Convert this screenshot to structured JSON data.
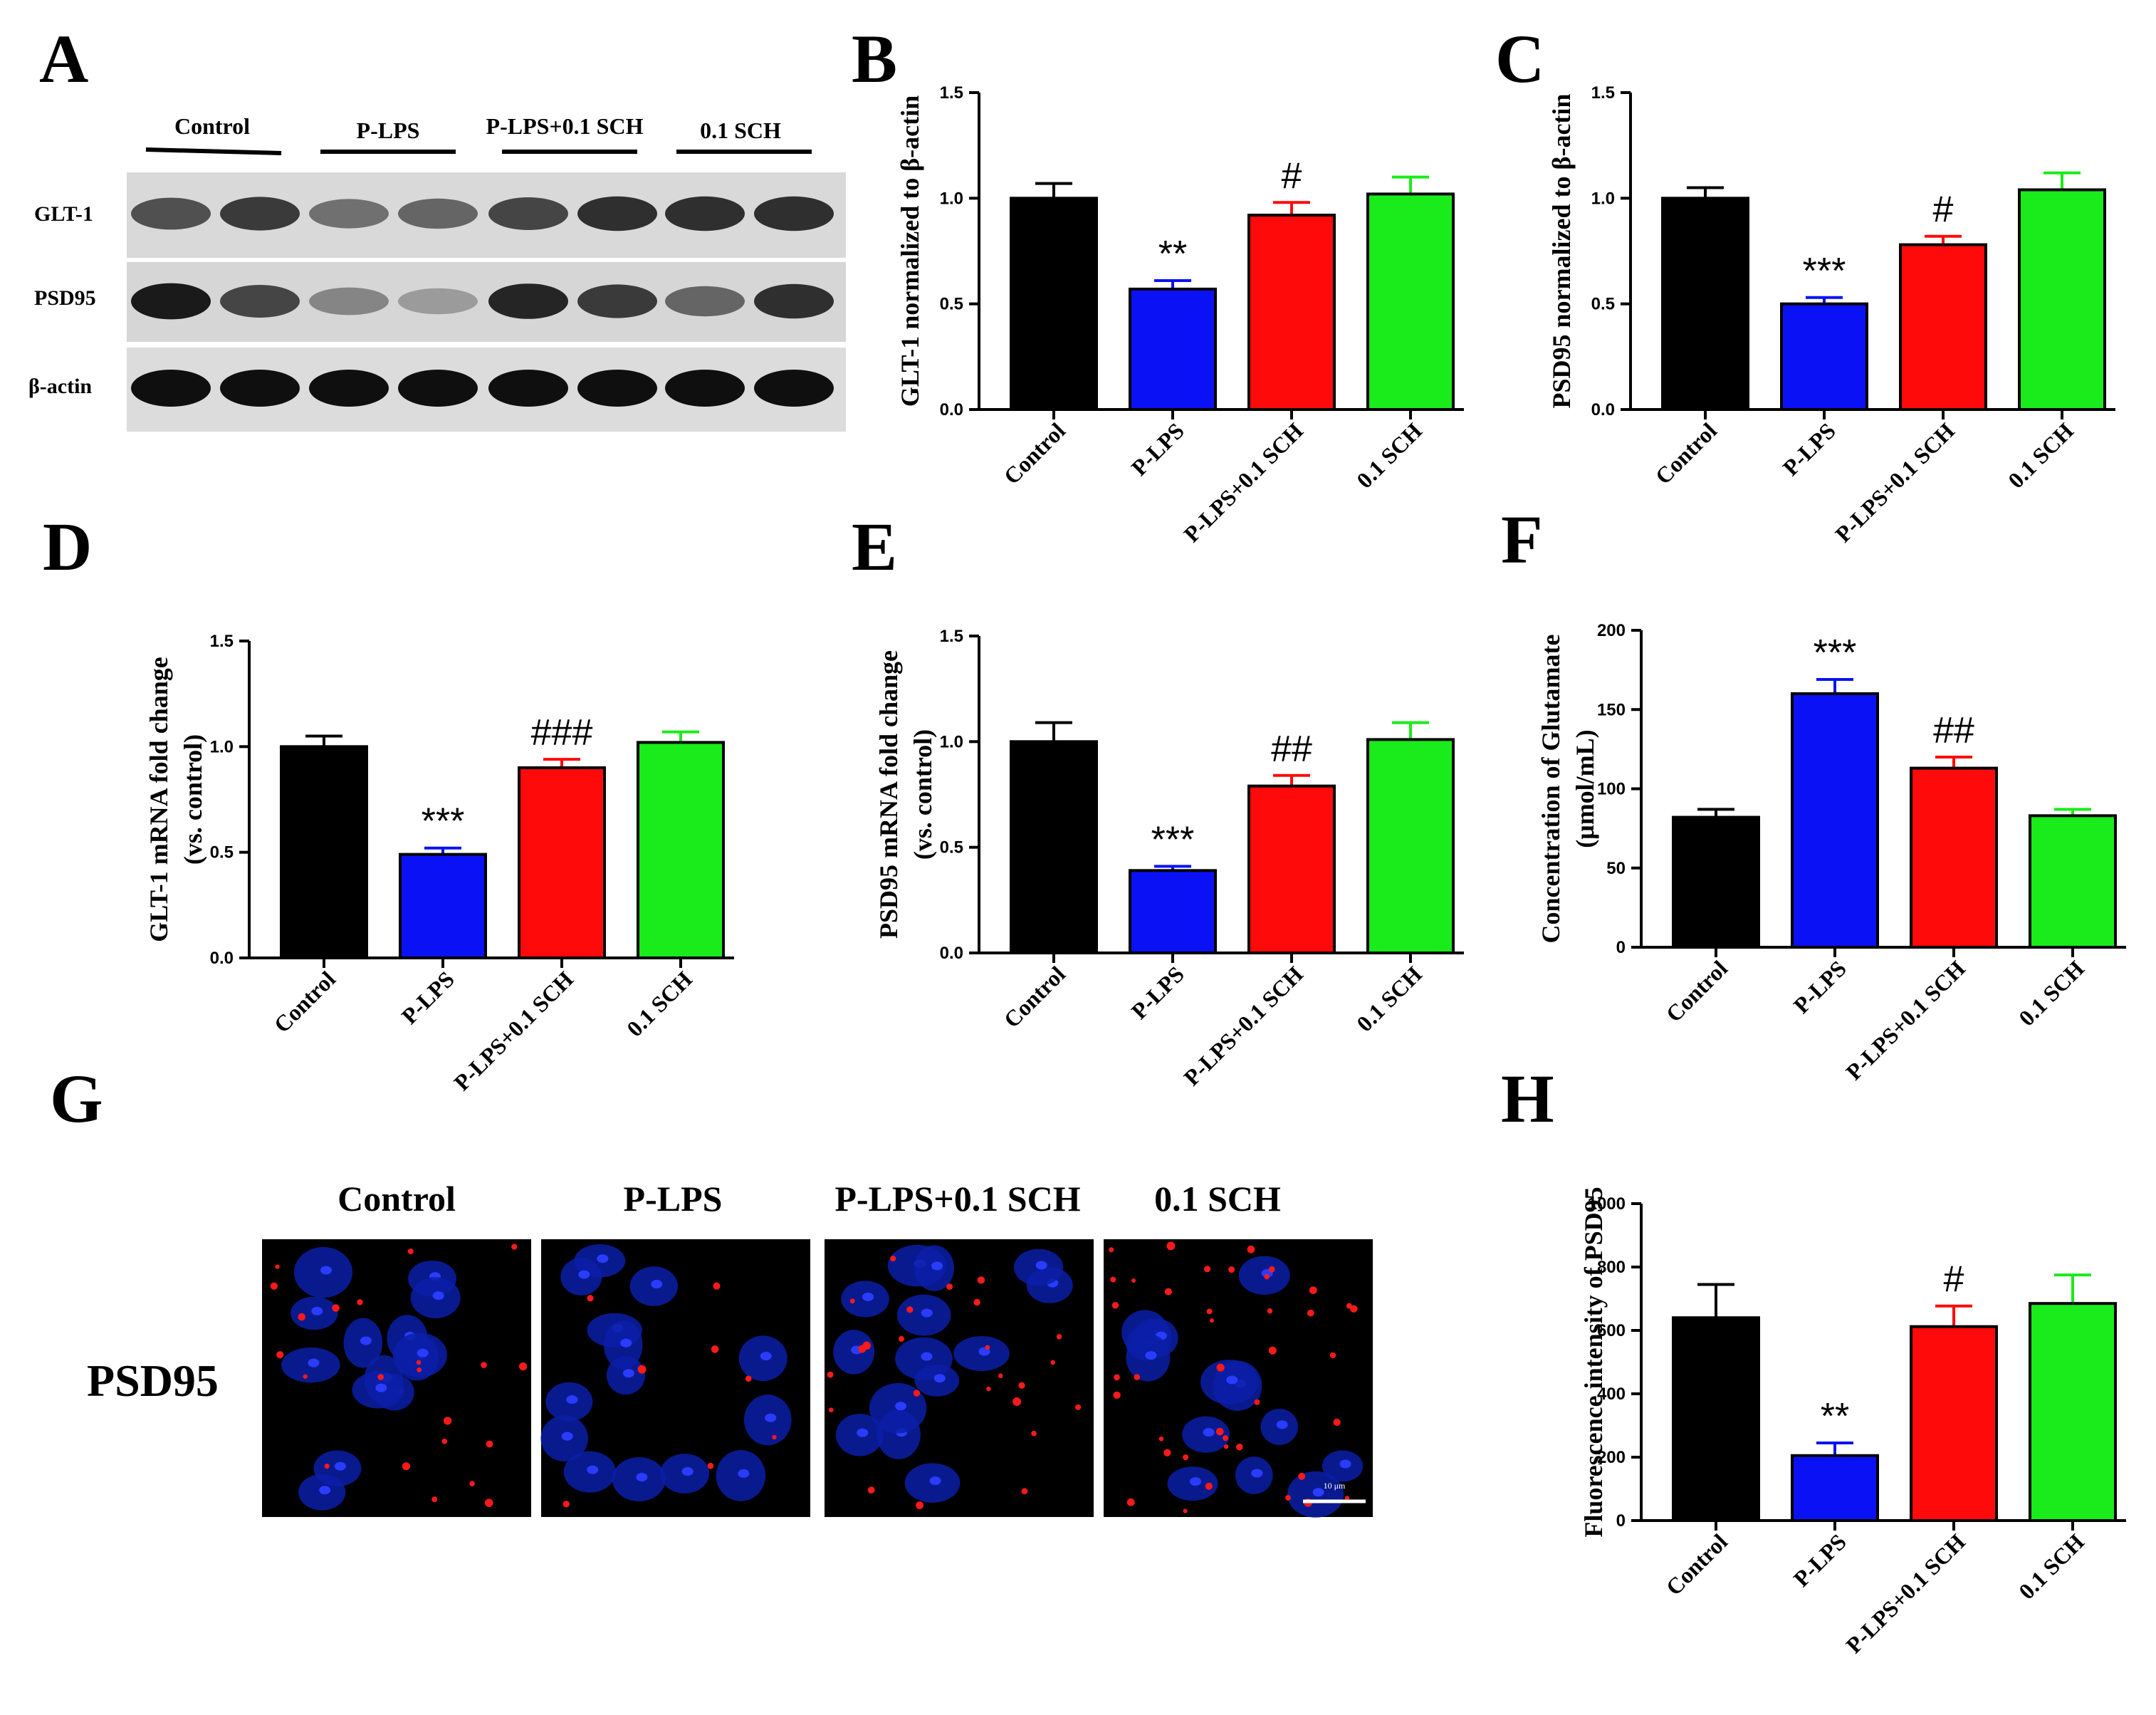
{
  "panel_letters": {
    "A": "A",
    "B": "B",
    "C": "C",
    "D": "D",
    "E": "E",
    "F": "F",
    "G": "G",
    "H": "H"
  },
  "western_blot": {
    "lanes": [
      "Control",
      "P-LPS",
      "P-LPS+0.1 SCH",
      "0.1 SCH"
    ],
    "rows": [
      "GLT-1",
      "PSD95",
      "β-actin"
    ],
    "band_intensity": [
      [
        0.7,
        0.8,
        0.55,
        0.6,
        0.75,
        0.85,
        0.85,
        0.85
      ],
      [
        0.95,
        0.75,
        0.45,
        0.35,
        0.9,
        0.8,
        0.6,
        0.85
      ],
      [
        1.0,
        1.0,
        1.0,
        1.0,
        1.0,
        1.0,
        1.0,
        1.0
      ]
    ]
  },
  "immunofluorescence": {
    "columns": [
      "Control",
      "P-LPS",
      "P-LPS+0.1 SCH",
      "0.1 SCH"
    ],
    "row_label": "PSD95",
    "scale_bar_label": "10 μm"
  },
  "colors": {
    "control": "#000000",
    "plps": "#0a12f5",
    "plps_sch": "#ff0a0a",
    "sch": "#1aeb1a"
  },
  "chart_data": [
    {
      "id": "B",
      "type": "bar",
      "categories": [
        "Control",
        "P-LPS",
        "P-LPS+0.1 SCH",
        "0.1 SCH"
      ],
      "values": [
        1.0,
        0.57,
        0.92,
        1.02
      ],
      "errors": [
        0.07,
        0.04,
        0.06,
        0.08
      ],
      "significance": [
        "",
        "**",
        "#",
        ""
      ],
      "ylabel": "GLT-1 normalized to β-actin",
      "ylim": [
        0,
        1.5
      ],
      "yticks": [
        "0.0",
        "0.5",
        "1.0",
        "1.5"
      ]
    },
    {
      "id": "C",
      "type": "bar",
      "categories": [
        "Control",
        "P-LPS",
        "P-LPS+0.1 SCH",
        "0.1 SCH"
      ],
      "values": [
        1.0,
        0.5,
        0.78,
        1.04
      ],
      "errors": [
        0.05,
        0.03,
        0.04,
        0.08
      ],
      "significance": [
        "",
        "***",
        "#",
        ""
      ],
      "ylabel": "PSD95 normalized to β-actin",
      "ylim": [
        0,
        1.5
      ],
      "yticks": [
        "0.0",
        "0.5",
        "1.0",
        "1.5"
      ]
    },
    {
      "id": "D",
      "type": "bar",
      "categories": [
        "Control",
        "P-LPS",
        "P-LPS+0.1 SCH",
        "0.1 SCH"
      ],
      "values": [
        1.0,
        0.49,
        0.9,
        1.02
      ],
      "errors": [
        0.05,
        0.03,
        0.04,
        0.05
      ],
      "significance": [
        "",
        "***",
        "###",
        ""
      ],
      "ylabel": "GLT-1 mRNA fold change",
      "ylabel2": "(vs. control)",
      "ylim": [
        0,
        1.5
      ],
      "yticks": [
        "0.0",
        "0.5",
        "1.0",
        "1.5"
      ]
    },
    {
      "id": "E",
      "type": "bar",
      "categories": [
        "Control",
        "P-LPS",
        "P-LPS+0.1 SCH",
        "0.1 SCH"
      ],
      "values": [
        1.0,
        0.39,
        0.79,
        1.01
      ],
      "errors": [
        0.09,
        0.02,
        0.05,
        0.08
      ],
      "significance": [
        "",
        "***",
        "##",
        ""
      ],
      "ylabel": "PSD95 mRNA fold change",
      "ylabel2": "(vs. control)",
      "ylim": [
        0,
        1.5
      ],
      "yticks": [
        "0.0",
        "0.5",
        "1.0",
        "1.5"
      ]
    },
    {
      "id": "F",
      "type": "bar",
      "categories": [
        "Control",
        "P-LPS",
        "P-LPS+0.1 SCH",
        "0.1 SCH"
      ],
      "values": [
        82,
        160,
        113,
        83
      ],
      "errors": [
        5,
        9,
        7,
        4
      ],
      "significance": [
        "",
        "***",
        "##",
        ""
      ],
      "ylabel": "Concentration of Glutamate",
      "ylabel2": "(μmol/mL)",
      "ylim": [
        0,
        200
      ],
      "yticks": [
        "0",
        "50",
        "100",
        "150",
        "200"
      ]
    },
    {
      "id": "H",
      "type": "bar",
      "categories": [
        "Control",
        "P-LPS",
        "P-LPS+0.1 SCH",
        "0.1 SCH"
      ],
      "values": [
        640,
        205,
        612,
        685
      ],
      "errors": [
        105,
        40,
        65,
        90
      ],
      "significance": [
        "",
        "**",
        "#",
        ""
      ],
      "ylabel": "Fluorescence intensity of PSD95",
      "ylim": [
        0,
        1000
      ],
      "yticks": [
        "0",
        "200",
        "400",
        "600",
        "800",
        "1000"
      ]
    }
  ]
}
